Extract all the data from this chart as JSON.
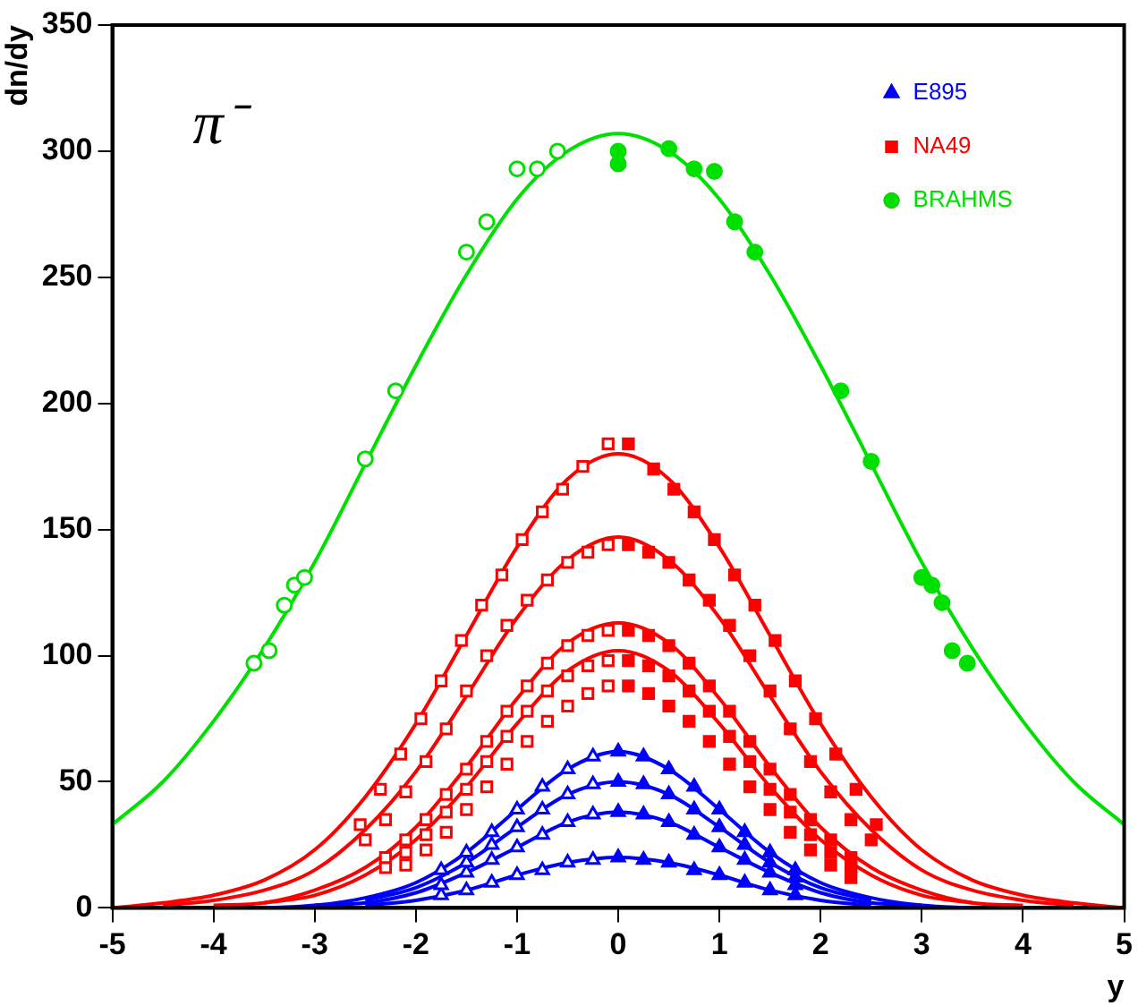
{
  "chart_data": {
    "type": "scatter",
    "xlabel": "y",
    "ylabel": "dn/dy",
    "annotations": [
      "π⁻"
    ],
    "xlim": [
      -5,
      5
    ],
    "xticks": [
      -5,
      -4,
      -3,
      -2,
      -1,
      0,
      1,
      2,
      3,
      4,
      5
    ],
    "ylim": [
      0,
      350
    ],
    "yticks": [
      0,
      50,
      100,
      150,
      200,
      250,
      300,
      350
    ],
    "grid": false,
    "legend": "top right",
    "series": [
      {
        "type": "line",
        "color": "#00e000",
        "x": [
          -5,
          -4.5,
          -4,
          -3.5,
          -3,
          -2.5,
          -2,
          -1.5,
          -1,
          -0.5,
          0,
          0.5,
          1,
          1.5,
          2,
          2.5,
          3,
          3.5,
          4,
          4.5,
          5
        ],
        "values": [
          33,
          50,
          74,
          103,
          137,
          176,
          215,
          251,
          281,
          300,
          307,
          300,
          281,
          251,
          215,
          176,
          137,
          103,
          74,
          50,
          33
        ]
      },
      {
        "type": "line",
        "color": "#ff0000",
        "x": [
          -5,
          -4.5,
          -4,
          -3.5,
          -3,
          -2.5,
          -2,
          -1.5,
          -1,
          -0.5,
          0,
          0.5,
          1,
          1.5,
          2,
          2.5,
          3,
          3.5,
          4,
          4.5,
          5
        ],
        "values": [
          0,
          2,
          5,
          11,
          23,
          44,
          73,
          108,
          143,
          170,
          180,
          170,
          143,
          108,
          73,
          44,
          23,
          11,
          5,
          2,
          0
        ]
      },
      {
        "type": "line",
        "color": "#ff0000",
        "x": [
          -4.5,
          -4,
          -3.5,
          -3,
          -2.5,
          -2,
          -1.5,
          -1,
          -0.5,
          0,
          0.5,
          1,
          1.5,
          2,
          2.5,
          3,
          3.5,
          4,
          4.5
        ],
        "values": [
          1,
          3,
          7,
          15,
          31,
          54,
          84,
          115,
          138,
          147,
          138,
          115,
          84,
          54,
          31,
          15,
          7,
          3,
          1
        ]
      },
      {
        "type": "line",
        "color": "#ff0000",
        "x": [
          -4,
          -3.5,
          -3,
          -2.5,
          -2,
          -1.5,
          -1,
          -0.5,
          0,
          0.5,
          1,
          1.5,
          2,
          2.5,
          3,
          3.5,
          4
        ],
        "values": [
          1,
          2,
          7,
          16,
          32,
          56,
          83,
          105,
          113,
          105,
          83,
          56,
          32,
          16,
          7,
          2,
          1
        ]
      },
      {
        "type": "line",
        "color": "#ff0000",
        "x": [
          -3.5,
          -3,
          -2.5,
          -2,
          -1.5,
          -1,
          -0.5,
          0,
          0.5,
          1,
          1.5,
          2,
          2.5,
          3,
          3.5
        ],
        "values": [
          2,
          5,
          13,
          27,
          48,
          73,
          94,
          102,
          94,
          73,
          48,
          27,
          13,
          5,
          2
        ]
      },
      {
        "type": "line",
        "color": "#0000ff",
        "x": [
          -3.5,
          -3,
          -2.5,
          -2,
          -1.5,
          -1,
          -0.5,
          0,
          0.5,
          1,
          1.5,
          2,
          2.5,
          3,
          3.5
        ],
        "values": [
          0,
          1,
          4,
          10,
          22,
          39,
          55,
          62,
          55,
          39,
          22,
          10,
          4,
          1,
          0
        ]
      },
      {
        "type": "line",
        "color": "#0000ff",
        "x": [
          -2.5,
          -2,
          -1.5,
          -1,
          -0.5,
          0,
          0.5,
          1,
          1.5,
          2,
          2.5
        ],
        "values": [
          3,
          8,
          18,
          32,
          45,
          50,
          45,
          32,
          18,
          8,
          3
        ]
      },
      {
        "type": "line",
        "color": "#0000ff",
        "x": [
          -3,
          -2.5,
          -2,
          -1.5,
          -1,
          -0.5,
          0,
          0.5,
          1,
          1.5,
          2,
          2.5,
          3
        ],
        "values": [
          1,
          2,
          6,
          14,
          24,
          34,
          38,
          34,
          24,
          14,
          6,
          2,
          1
        ]
      },
      {
        "type": "line",
        "color": "#0000ff",
        "x": [
          -2.5,
          -2,
          -1.5,
          -1,
          -0.5,
          0,
          0.5,
          1,
          1.5,
          2,
          2.5
        ],
        "values": [
          1,
          3,
          7,
          13,
          18,
          20,
          18,
          13,
          7,
          3,
          1
        ]
      },
      {
        "name": "E895",
        "color": "#0000ff",
        "marker": "triangle",
        "x": [
          -1.75,
          -1.5,
          -1.25,
          -1,
          -0.75,
          -0.5,
          -0.25,
          0,
          0.25,
          0.5,
          0.75,
          1,
          1.25,
          1.5,
          1.75
        ],
        "values": [
          15,
          22,
          30,
          39,
          48,
          55,
          60,
          62,
          60,
          55,
          48,
          39,
          30,
          22,
          15
        ]
      },
      {
        "type": "scatter",
        "color": "#0000ff",
        "marker": "triangle",
        "x": [
          -1.5,
          -1.25,
          -1,
          -0.75,
          -0.5,
          -0.25,
          0,
          0.25,
          0.5,
          0.75,
          1,
          1.25,
          1.5,
          1.75
        ],
        "values": [
          18,
          25,
          32,
          39,
          45,
          49,
          50,
          49,
          45,
          39,
          32,
          25,
          18,
          12
        ]
      },
      {
        "type": "scatter",
        "color": "#0000ff",
        "marker": "triangle",
        "x": [
          -1.75,
          -1.5,
          -1.25,
          -1,
          -0.75,
          -0.5,
          -0.25,
          0,
          0.25,
          0.5,
          0.75,
          1,
          1.25,
          1.5,
          1.75
        ],
        "values": [
          9,
          14,
          19,
          24,
          29,
          34,
          37,
          38,
          37,
          34,
          29,
          24,
          19,
          14,
          9
        ]
      },
      {
        "type": "scatter",
        "color": "#0000ff",
        "marker": "triangle",
        "x": [
          -1.75,
          -1.5,
          -1.25,
          -1,
          -0.75,
          -0.5,
          -0.25,
          0,
          0.25,
          0.5,
          0.75,
          1,
          1.25,
          1.5,
          1.75
        ],
        "values": [
          5,
          7,
          10,
          13,
          15,
          18,
          19,
          20,
          19,
          18,
          15,
          13,
          10,
          7,
          5
        ]
      },
      {
        "name": "NA49",
        "color": "#ff0000",
        "marker": "square",
        "x": [
          -2.55,
          -2.35,
          -2.15,
          -1.95,
          -1.75,
          -1.55,
          -1.35,
          -1.15,
          -0.95,
          -0.75,
          -0.55,
          -0.35,
          -0.1,
          0.1,
          0.35,
          0.55,
          0.75,
          0.95,
          1.15,
          1.35,
          1.55,
          1.75,
          1.95,
          2.15,
          2.35,
          2.55
        ],
        "values": [
          33,
          47,
          61,
          75,
          90,
          106,
          120,
          132,
          146,
          157,
          166,
          175,
          184,
          184,
          174,
          166,
          157,
          146,
          132,
          120,
          106,
          90,
          75,
          61,
          47,
          33
        ]
      },
      {
        "type": "scatter",
        "color": "#ff0000",
        "marker": "square",
        "x": [
          -2.5,
          -2.3,
          -2.1,
          -1.9,
          -1.7,
          -1.5,
          -1.3,
          -1.1,
          -0.9,
          -0.7,
          -0.5,
          -0.3,
          -0.1,
          0.1,
          0.3,
          0.5,
          0.7,
          0.9,
          1.1,
          1.3,
          1.5,
          1.7,
          1.9,
          2.1,
          2.3,
          2.5
        ],
        "values": [
          27,
          35,
          46,
          58,
          71,
          86,
          100,
          112,
          122,
          130,
          137,
          141,
          144,
          144,
          141,
          137,
          130,
          122,
          112,
          100,
          86,
          71,
          58,
          46,
          35,
          27
        ]
      },
      {
        "type": "scatter",
        "color": "#ff0000",
        "marker": "square",
        "x": [
          -2.3,
          -2.1,
          -1.9,
          -1.7,
          -1.5,
          -1.3,
          -1.1,
          -0.9,
          -0.7,
          -0.5,
          -0.3,
          -0.1,
          0.1,
          0.3,
          0.5,
          0.7,
          0.9,
          1.1,
          1.3,
          1.5,
          1.7,
          1.9,
          2.1,
          2.3
        ],
        "values": [
          20,
          27,
          35,
          45,
          55,
          66,
          78,
          88,
          97,
          104,
          108,
          110,
          110,
          108,
          104,
          97,
          88,
          78,
          66,
          55,
          45,
          35,
          27,
          20
        ]
      },
      {
        "type": "scatter",
        "color": "#ff0000",
        "marker": "square",
        "x": [
          -2.3,
          -2.1,
          -1.9,
          -1.7,
          -1.5,
          -1.3,
          -1.1,
          -0.9,
          -0.7,
          -0.5,
          -0.3,
          -0.1,
          0.1,
          0.3,
          0.5,
          0.7,
          0.9,
          1.1,
          1.3,
          1.5,
          1.7,
          1.9,
          2.1,
          2.3
        ],
        "values": [
          16,
          22,
          29,
          38,
          47,
          58,
          68,
          78,
          86,
          92,
          96,
          98,
          98,
          96,
          92,
          86,
          78,
          68,
          58,
          47,
          38,
          29,
          22,
          16
        ]
      },
      {
        "type": "scatter",
        "color": "#ff0000",
        "marker": "square",
        "x": [
          -2.1,
          -1.9,
          -1.7,
          -1.5,
          -1.3,
          -1.1,
          -0.9,
          -0.7,
          -0.5,
          -0.3,
          -0.1,
          0.1,
          0.3,
          0.5,
          0.7,
          0.9,
          1.1,
          1.3,
          1.5,
          1.7,
          1.9,
          2.1,
          2.3
        ],
        "values": [
          17,
          23,
          30,
          39,
          48,
          57,
          66,
          74,
          80,
          85,
          88,
          88,
          85,
          80,
          74,
          66,
          57,
          48,
          39,
          30,
          23,
          17,
          12
        ]
      },
      {
        "name": "BRAHMS",
        "color": "#00e000",
        "marker": "circle",
        "x": [
          -3.6,
          -3.45,
          -3.3,
          -3.2,
          -3.1,
          -2.5,
          -2.2,
          -1.5,
          -1.3,
          -1.0,
          -0.8,
          -0.6,
          0,
          0,
          0.5,
          0.75,
          0.95,
          1.15,
          1.35,
          2.2,
          2.5,
          3.0,
          3.1,
          3.2,
          3.3,
          3.45
        ],
        "values": [
          97,
          102,
          120,
          128,
          131,
          178,
          205,
          260,
          272,
          293,
          293,
          300,
          300,
          295,
          301,
          293,
          292,
          272,
          260,
          205,
          177,
          131,
          128,
          121,
          102,
          97
        ]
      }
    ]
  }
}
